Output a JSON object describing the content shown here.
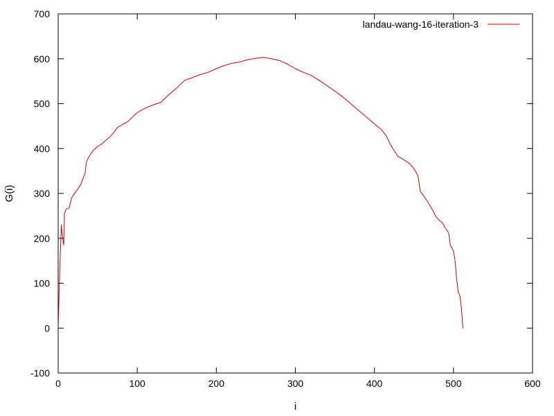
{
  "chart_data": {
    "type": "line",
    "xlabel": "i",
    "ylabel": "G(i)",
    "xlim": [
      0,
      600
    ],
    "ylim": [
      -100,
      700
    ],
    "x_ticks": [
      "0",
      "100",
      "200",
      "300",
      "400",
      "500",
      "600"
    ],
    "y_ticks": [
      "-100",
      "0",
      "100",
      "200",
      "300",
      "400",
      "500",
      "600",
      "700"
    ],
    "grid": false,
    "legend_position": "top-right",
    "series_color": "#cc0000",
    "series": [
      {
        "name": "landau-wang-16-iteration-3",
        "points": [
          [
            0,
            0
          ],
          [
            2,
            130
          ],
          [
            4,
            230
          ],
          [
            5,
            210
          ],
          [
            7,
            185
          ],
          [
            8,
            255
          ],
          [
            10,
            265
          ],
          [
            14,
            268
          ],
          [
            17,
            290
          ],
          [
            20,
            298
          ],
          [
            24,
            308
          ],
          [
            28,
            318
          ],
          [
            32,
            335
          ],
          [
            34,
            345
          ],
          [
            36,
            372
          ],
          [
            40,
            385
          ],
          [
            44,
            395
          ],
          [
            50,
            405
          ],
          [
            55,
            410
          ],
          [
            60,
            418
          ],
          [
            65,
            425
          ],
          [
            70,
            435
          ],
          [
            75,
            447
          ],
          [
            80,
            452
          ],
          [
            88,
            460
          ],
          [
            95,
            472
          ],
          [
            100,
            480
          ],
          [
            110,
            490
          ],
          [
            120,
            497
          ],
          [
            130,
            503
          ],
          [
            140,
            520
          ],
          [
            150,
            535
          ],
          [
            160,
            552
          ],
          [
            170,
            558
          ],
          [
            180,
            565
          ],
          [
            190,
            570
          ],
          [
            200,
            578
          ],
          [
            210,
            585
          ],
          [
            220,
            590
          ],
          [
            230,
            593
          ],
          [
            240,
            598
          ],
          [
            250,
            601
          ],
          [
            260,
            603
          ],
          [
            270,
            600
          ],
          [
            280,
            596
          ],
          [
            290,
            588
          ],
          [
            300,
            578
          ],
          [
            310,
            570
          ],
          [
            320,
            563
          ],
          [
            330,
            552
          ],
          [
            340,
            540
          ],
          [
            350,
            528
          ],
          [
            360,
            515
          ],
          [
            370,
            500
          ],
          [
            380,
            485
          ],
          [
            390,
            470
          ],
          [
            400,
            455
          ],
          [
            410,
            440
          ],
          [
            415,
            428
          ],
          [
            420,
            410
          ],
          [
            425,
            395
          ],
          [
            430,
            383
          ],
          [
            440,
            372
          ],
          [
            445,
            366
          ],
          [
            450,
            355
          ],
          [
            455,
            340
          ],
          [
            458,
            305
          ],
          [
            462,
            295
          ],
          [
            468,
            280
          ],
          [
            474,
            262
          ],
          [
            478,
            248
          ],
          [
            482,
            240
          ],
          [
            486,
            235
          ],
          [
            490,
            222
          ],
          [
            494,
            212
          ],
          [
            496,
            185
          ],
          [
            500,
            172
          ],
          [
            502,
            150
          ],
          [
            504,
            110
          ],
          [
            506,
            80
          ],
          [
            508,
            73
          ],
          [
            510,
            45
          ],
          [
            512,
            0
          ]
        ]
      }
    ]
  }
}
